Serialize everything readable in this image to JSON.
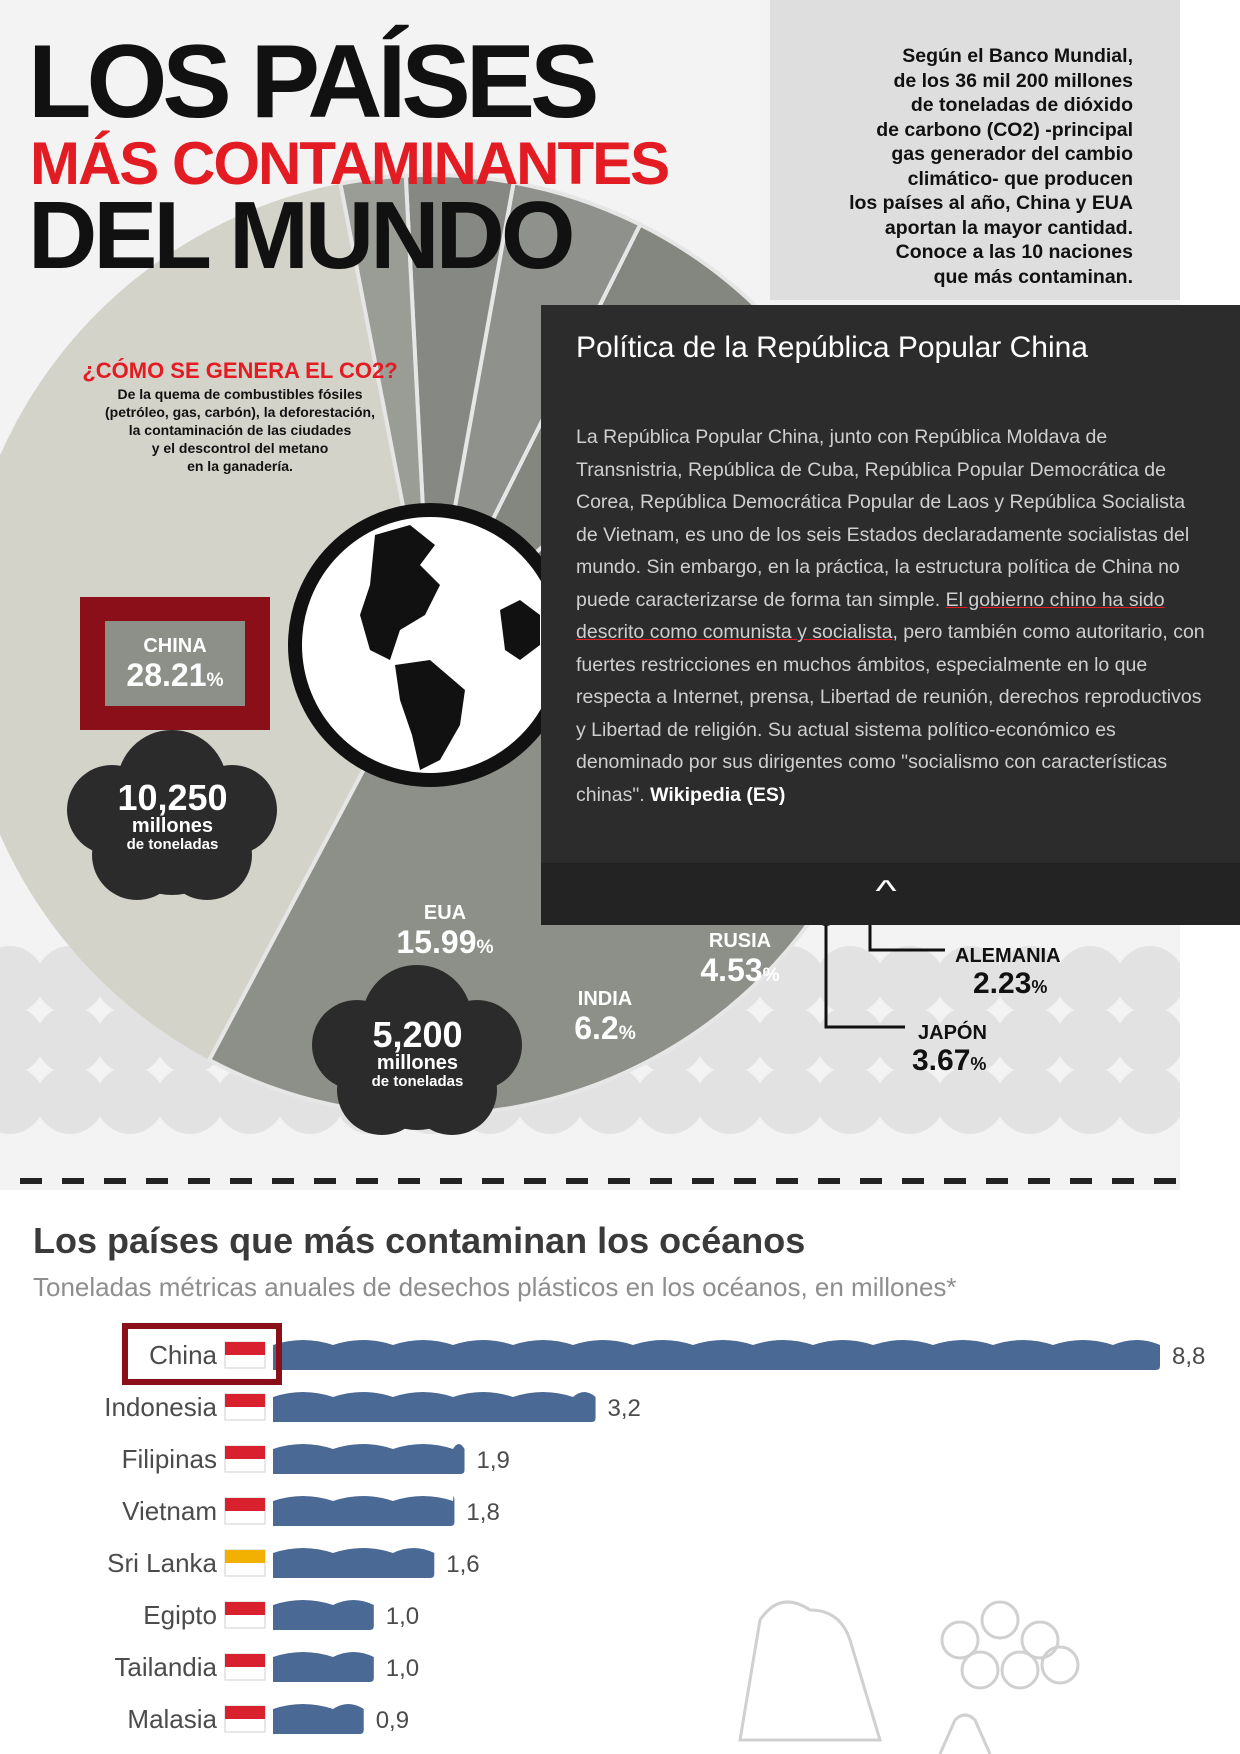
{
  "header": {
    "title_line1": "LOS PAÍSES",
    "title_line2": "MÁS CONTAMINANTES",
    "title_line3": "DEL MUNDO",
    "intro_lines": [
      "Según el Banco Mundial,",
      "de los 36 mil 200 millones",
      "de toneladas de dióxido",
      "de carbono (CO2) -principal",
      "gas generador del cambio",
      "climático- que producen",
      "los países al año, China y EUA",
      "aportan la mayor cantidad.",
      "Conoce a las 10 naciones",
      "que más contaminan."
    ]
  },
  "co2_info": {
    "heading": "¿CÓMO SE GENERA EL CO2?",
    "lines": [
      "De la quema de combustibles fósiles",
      "(petróleo, gas, carbón), la deforestación,",
      "la contaminación de las ciudades",
      "y el descontrol del metano",
      "en la ganadería."
    ]
  },
  "popup": {
    "title": "Política de la República Popular China",
    "body_before": "La República Popular China, junto con República Moldava de Transnistria, República de Cuba, República Popular Democrática de Corea, República Democrática Popular de Laos y República Socialista de Vietnam, es uno de los seis Estados declaradamente socialistas del mundo.  Sin embargo, en la práctica, la estructura política de China no puede caracterizarse de forma tan simple. ",
    "body_highlight": "El gobierno chino ha sido descrito como comunista y socialista",
    "body_after": ", pero también como autoritario, con fuertes restricciones en muchos ámbitos, especialmente en lo que respecta a Internet, prensa, Libertad de reunión, derechos reproductivos y Libertad de religión. Su actual sistema político-económico es denominado por sus dirigentes como \"socialismo con características chinas\". ",
    "source": "Wikipedia (ES)",
    "expand_icon": "chevron-up-icon"
  },
  "chart_data": [
    {
      "type": "pie",
      "unit": "%",
      "slices": [
        {
          "label": "CHINA",
          "value": 28.21,
          "pct_text": "28.21",
          "color": "#8c9088"
        },
        {
          "label": "EUA",
          "value": 15.99,
          "pct_text": "15.99",
          "color": "#767b74"
        },
        {
          "label": "INDIA",
          "value": 6.2,
          "pct_text": "6.2",
          "color": "#838780"
        },
        {
          "label": "RUSIA",
          "value": 4.53,
          "pct_text": "4.53",
          "color": "#8f928c"
        },
        {
          "label": "JAPÓN",
          "value": 3.67,
          "pct_text": "3.67",
          "color": "#868983"
        },
        {
          "label": "ALEMANIA",
          "value": 2.23,
          "pct_text": "2.23",
          "color": "#9a9c96"
        }
      ],
      "callouts": [
        {
          "for": "CHINA",
          "value": "10,250",
          "unit": "millones",
          "unit2": "de toneladas"
        },
        {
          "for": "EUA",
          "value": "5,200",
          "unit": "millones",
          "unit2": "de toneladas"
        }
      ]
    },
    {
      "type": "bar",
      "orientation": "horizontal",
      "title": "Los países que más contaminan los océanos",
      "subtitle": "Toneladas métricas anuales de desechos plásticos en los océanos, en millones*",
      "categories": [
        "China",
        "Indonesia",
        "Filipinas",
        "Vietnam",
        "Sri Lanka",
        "Egipto",
        "Tailandia",
        "Malasia"
      ],
      "values": [
        8.8,
        3.2,
        1.9,
        1.8,
        1.6,
        1.0,
        1.0,
        0.9
      ],
      "value_labels": [
        "8,8",
        "3,2",
        "1,9",
        "1,8",
        "1,6",
        "1,0",
        "1,0",
        "0,9"
      ],
      "bar_color": "#4a6994",
      "highlight": "China",
      "highlight_color": "#8a0f19"
    }
  ]
}
